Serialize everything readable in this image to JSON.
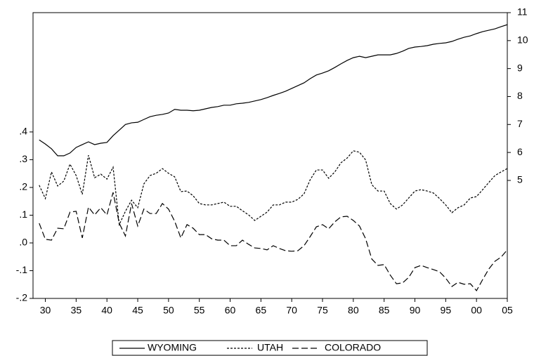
{
  "chart_data": {
    "type": "line",
    "x": [
      1929,
      1930,
      1931,
      1932,
      1933,
      1934,
      1935,
      1936,
      1937,
      1938,
      1939,
      1940,
      1941,
      1942,
      1943,
      1944,
      1945,
      1946,
      1947,
      1948,
      1949,
      1950,
      1951,
      1952,
      1953,
      1954,
      1955,
      1956,
      1957,
      1958,
      1959,
      1960,
      1961,
      1962,
      1963,
      1964,
      1965,
      1966,
      1967,
      1968,
      1969,
      1970,
      1971,
      1972,
      1973,
      1974,
      1975,
      1976,
      1977,
      1978,
      1979,
      1980,
      1981,
      1982,
      1983,
      1984,
      1985,
      1986,
      1987,
      1988,
      1989,
      1990,
      1991,
      1992,
      1993,
      1994,
      1995,
      1996,
      1997,
      1998,
      1999,
      2000,
      2001,
      2002,
      2003,
      2004,
      2005
    ],
    "series": [
      {
        "name": "WYOMING",
        "color": "#000000",
        "line_style": "solid",
        "axis": "y2",
        "values": [
          6.45,
          6.3,
          6.13,
          5.88,
          5.88,
          5.98,
          6.18,
          6.28,
          6.38,
          6.28,
          6.33,
          6.36,
          6.6,
          6.8,
          7.0,
          7.06,
          7.08,
          7.18,
          7.28,
          7.33,
          7.36,
          7.41,
          7.54,
          7.51,
          7.51,
          7.49,
          7.51,
          7.56,
          7.61,
          7.64,
          7.69,
          7.69,
          7.74,
          7.76,
          7.79,
          7.84,
          7.89,
          7.96,
          8.04,
          8.11,
          8.19,
          8.29,
          8.39,
          8.49,
          8.64,
          8.77,
          8.84,
          8.92,
          9.04,
          9.17,
          9.29,
          9.39,
          9.44,
          9.39,
          9.44,
          9.49,
          9.49,
          9.49,
          9.54,
          9.62,
          9.72,
          9.77,
          9.79,
          9.82,
          9.87,
          9.9,
          9.92,
          9.97,
          10.05,
          10.12,
          10.17,
          10.25,
          10.32,
          10.37,
          10.42,
          10.5,
          10.57
        ]
      },
      {
        "name": "UTAH",
        "color": "#000000",
        "line_style": "short-dash",
        "values": [
          0.208,
          0.16,
          0.256,
          0.205,
          0.223,
          0.284,
          0.243,
          0.175,
          0.316,
          0.235,
          0.248,
          0.23,
          0.273,
          0.066,
          0.114,
          0.154,
          0.127,
          0.213,
          0.243,
          0.251,
          0.268,
          0.251,
          0.238,
          0.185,
          0.187,
          0.17,
          0.142,
          0.137,
          0.137,
          0.142,
          0.147,
          0.132,
          0.132,
          0.116,
          0.101,
          0.081,
          0.096,
          0.111,
          0.137,
          0.137,
          0.147,
          0.147,
          0.157,
          0.177,
          0.228,
          0.263,
          0.263,
          0.233,
          0.256,
          0.289,
          0.306,
          0.332,
          0.327,
          0.299,
          0.21,
          0.187,
          0.187,
          0.142,
          0.122,
          0.137,
          0.162,
          0.187,
          0.192,
          0.187,
          0.18,
          0.16,
          0.137,
          0.109,
          0.127,
          0.137,
          0.162,
          0.167,
          0.192,
          0.218,
          0.243,
          0.256,
          0.268
        ]
      },
      {
        "name": "COLORADO",
        "color": "#000000",
        "line_style": "long-dash",
        "values": [
          0.071,
          0.013,
          0.01,
          0.053,
          0.051,
          0.111,
          0.114,
          0.018,
          0.129,
          0.101,
          0.127,
          0.101,
          0.182,
          0.071,
          0.025,
          0.142,
          0.061,
          0.122,
          0.106,
          0.106,
          0.142,
          0.122,
          0.078,
          0.018,
          0.066,
          0.053,
          0.03,
          0.03,
          0.015,
          0.01,
          0.01,
          -0.01,
          -0.01,
          0.01,
          -0.005,
          -0.018,
          -0.02,
          -0.025,
          -0.01,
          -0.02,
          -0.028,
          -0.03,
          -0.028,
          -0.01,
          0.023,
          0.058,
          0.066,
          0.051,
          0.076,
          0.094,
          0.096,
          0.081,
          0.061,
          0.015,
          -0.058,
          -0.081,
          -0.078,
          -0.116,
          -0.147,
          -0.144,
          -0.124,
          -0.089,
          -0.081,
          -0.089,
          -0.096,
          -0.104,
          -0.127,
          -0.157,
          -0.142,
          -0.149,
          -0.147,
          -0.172,
          -0.132,
          -0.094,
          -0.066,
          -0.051,
          -0.025
        ]
      }
    ],
    "xlim": [
      1928,
      2005
    ],
    "xticks": [
      {
        "value": 1930,
        "label": "30"
      },
      {
        "value": 1935,
        "label": "35"
      },
      {
        "value": 1940,
        "label": "40"
      },
      {
        "value": 1945,
        "label": "45"
      },
      {
        "value": 1950,
        "label": "50"
      },
      {
        "value": 1955,
        "label": "55"
      },
      {
        "value": 1960,
        "label": "60"
      },
      {
        "value": 1965,
        "label": "65"
      },
      {
        "value": 1970,
        "label": "70"
      },
      {
        "value": 1975,
        "label": "75"
      },
      {
        "value": 1980,
        "label": "80"
      },
      {
        "value": 1985,
        "label": "85"
      },
      {
        "value": 1990,
        "label": "90"
      },
      {
        "value": 1995,
        "label": "95"
      },
      {
        "value": 2000,
        "label": "00"
      },
      {
        "value": 2005,
        "label": "05"
      }
    ],
    "ylim": [
      -0.2,
      0.83
    ],
    "yticks": [
      {
        "value": -0.2,
        "label": "-.2"
      },
      {
        "value": -0.1,
        "label": "-.1"
      },
      {
        "value": 0,
        "label": ".0"
      },
      {
        "value": 0.1,
        "label": ".1"
      },
      {
        "value": 0.2,
        "label": ".2"
      },
      {
        "value": 0.3,
        "label": ".3"
      },
      {
        "value": 0.4,
        "label": ".4"
      }
    ],
    "y2lim": [
      0.78,
      11
    ],
    "y2ticks": [
      5,
      6,
      7,
      8,
      9,
      10,
      11
    ],
    "legend": "bottom"
  }
}
